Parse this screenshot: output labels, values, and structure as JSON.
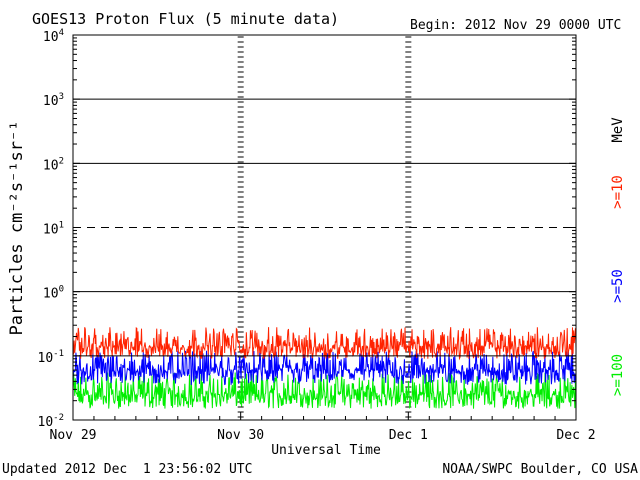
{
  "chart_data": {
    "type": "line",
    "title": "GOES13 Proton Flux (5 minute data)",
    "begin_label": "Begin: 2012 Nov 29 0000 UTC",
    "xlabel": "Universal Time",
    "ylabel": "Particles cm⁻²s⁻¹sr⁻¹",
    "units_label": "MeV",
    "updated_label": "Updated 2012 Dec  1 23:56:02 UTC",
    "credit_label": "NOAA/SWPC Boulder, CO USA",
    "yscale": "log",
    "ylim": [
      0.01,
      10000
    ],
    "y_ticks": [
      {
        "value": 0.01,
        "base": "10",
        "exp": "-2"
      },
      {
        "value": 0.1,
        "base": "10",
        "exp": "-1"
      },
      {
        "value": 1,
        "base": "10",
        "exp": "0"
      },
      {
        "value": 10,
        "base": "10",
        "exp": "1"
      },
      {
        "value": 100,
        "base": "10",
        "exp": "2"
      },
      {
        "value": 1000,
        "base": "10",
        "exp": "3"
      },
      {
        "value": 10000,
        "base": "10",
        "exp": "4"
      }
    ],
    "x_ticks": [
      "Nov 29",
      "Nov 30",
      "Dec 1",
      "Dec 2"
    ],
    "xlim_days": [
      0,
      3
    ],
    "solid_gridlines": [
      1,
      100,
      1000
    ],
    "dashed_gridlines": [
      10
    ],
    "threshold_line": 0.1,
    "series": [
      {
        "name": ">=10",
        "color": "#ff2200",
        "base": 0.14,
        "amp_low": 0.09,
        "amp_high": 0.28
      },
      {
        "name": ">=50",
        "color": "#0000ff",
        "base": 0.06,
        "amp_low": 0.035,
        "amp_high": 0.12
      },
      {
        "name": ">=100",
        "color": "#00ee00",
        "base": 0.025,
        "amp_low": 0.015,
        "amp_high": 0.055
      }
    ]
  }
}
